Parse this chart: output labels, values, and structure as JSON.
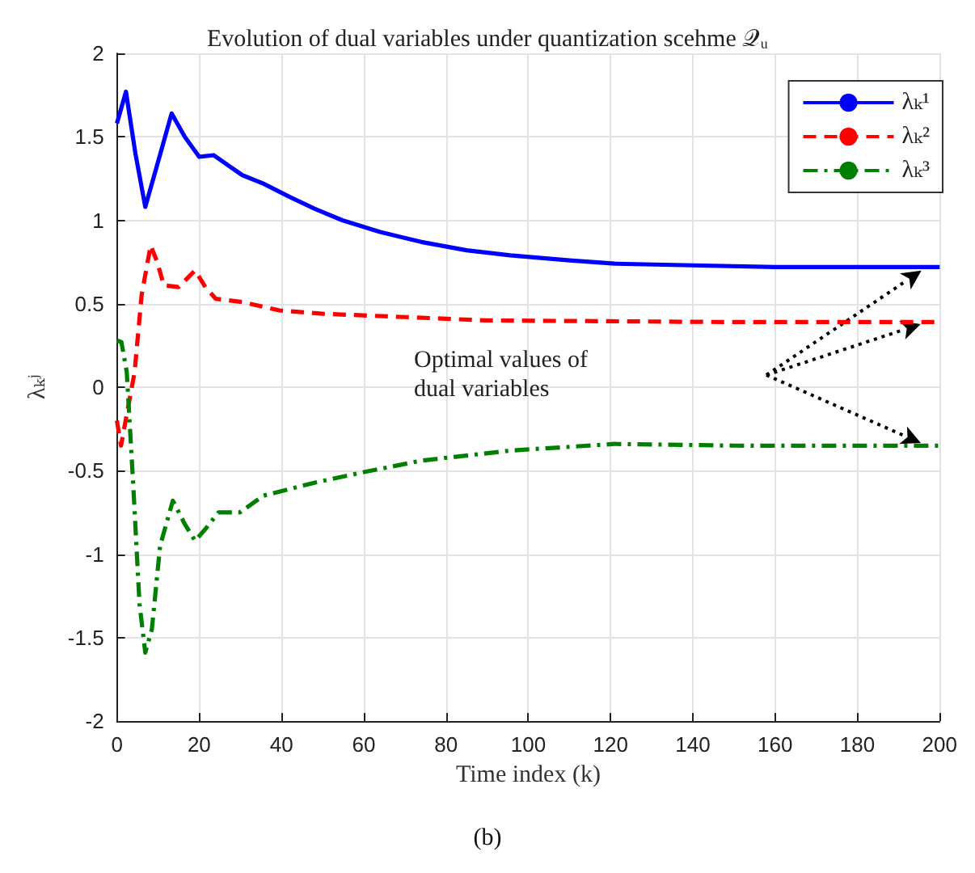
{
  "chart_data": {
    "type": "line",
    "title": "Evolution of dual variables under quantization scehme 𝒬ᵤ",
    "xlabel": "Time index (k)",
    "ylabel": "λₖʲ",
    "xlim": [
      0,
      200
    ],
    "xticks": [
      0,
      20,
      40,
      60,
      80,
      100,
      120,
      140,
      160,
      180,
      200
    ],
    "ylim": [
      -2,
      2
    ],
    "yticks": [
      -2,
      -1.5,
      -1,
      -0.5,
      0,
      0.5,
      1,
      1.5,
      2
    ],
    "grid": true,
    "legend": "top right",
    "marker": "none",
    "annotations": [
      "Optimal values of\ndual variables",
      "(b)"
    ],
    "series": [
      {
        "name": "λₖ¹",
        "color": "#0000ff",
        "line_style": "solid",
        "x": [
          0,
          2.2,
          4.5,
          6.9,
          10,
          13.3,
          16.5,
          20,
          23.5,
          27,
          30.5,
          35.6,
          42,
          48,
          54.8,
          64,
          74,
          85,
          95.6,
          110,
          121,
          140,
          160,
          180,
          200
        ],
        "values": [
          1.58,
          1.77,
          1.4,
          1.08,
          1.35,
          1.64,
          1.5,
          1.38,
          1.39,
          1.33,
          1.27,
          1.22,
          1.14,
          1.07,
          1.0,
          0.93,
          0.87,
          0.82,
          0.79,
          0.76,
          0.74,
          0.73,
          0.72,
          0.72,
          0.72
        ]
      },
      {
        "name": "λₖ²",
        "color": "#ff0000",
        "line_style": "dashed",
        "x": [
          0,
          1,
          2.5,
          4.3,
          6,
          8.2,
          9.8,
          11.4,
          15,
          19,
          21.5,
          24,
          30.5,
          39.5,
          50,
          70,
          90,
          120,
          150,
          180,
          200
        ],
        "values": [
          -0.2,
          -0.35,
          -0.15,
          0.09,
          0.55,
          0.85,
          0.75,
          0.61,
          0.6,
          0.7,
          0.6,
          0.53,
          0.51,
          0.46,
          0.44,
          0.42,
          0.4,
          0.395,
          0.39,
          0.39,
          0.39
        ]
      },
      {
        "name": "λₖ³",
        "color": "#008000",
        "line_style": "dashed-dot",
        "x": [
          0,
          1.1,
          2.4,
          4,
          5.5,
          6.9,
          8.5,
          10.5,
          13.6,
          16.5,
          19,
          21.5,
          24.7,
          29.9,
          35.6,
          48.4,
          59.8,
          74,
          95.6,
          121,
          150,
          180,
          200
        ],
        "values": [
          0.28,
          0.27,
          0.09,
          -0.6,
          -1.3,
          -1.59,
          -1.45,
          -0.95,
          -0.68,
          -0.82,
          -0.92,
          -0.85,
          -0.75,
          -0.75,
          -0.65,
          -0.57,
          -0.51,
          -0.44,
          -0.38,
          -0.34,
          -0.35,
          -0.35,
          -0.35
        ]
      }
    ]
  }
}
